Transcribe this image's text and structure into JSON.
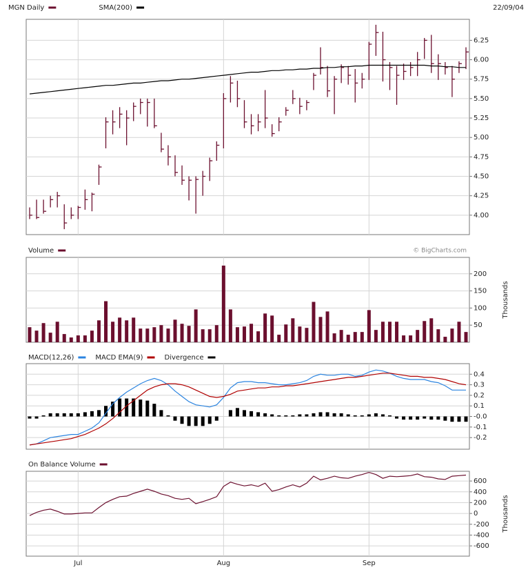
{
  "chart_data": [
    {
      "type": "ohlc",
      "date": "22/09/04",
      "ylim": [
        3.75,
        6.52
      ],
      "yticks": [
        {
          "value": 4,
          "label": "4.00"
        },
        {
          "value": 4.25,
          "label": "4.25"
        },
        {
          "value": 4.5,
          "label": "4.50"
        },
        {
          "value": 4.75,
          "label": "4.75"
        },
        {
          "value": 5,
          "label": "5.00"
        },
        {
          "value": 5.25,
          "label": "5.25"
        },
        {
          "value": 5.5,
          "label": "5.50"
        },
        {
          "value": 5.75,
          "label": "5.75"
        },
        {
          "value": 6,
          "label": "6.00"
        },
        {
          "value": 6.25,
          "label": "6.25"
        }
      ],
      "series": [
        {
          "name": "MGN Daily",
          "color": "#6b0f2e",
          "high": [
            4.1,
            4.2,
            4.2,
            4.25,
            4.3,
            4.14,
            4.1,
            4.12,
            4.33,
            4.29,
            4.65,
            5.26,
            5.35,
            5.39,
            5.35,
            5.45,
            5.5,
            5.5,
            5.5,
            5.06,
            4.9,
            4.77,
            4.64,
            4.5,
            4.5,
            4.57,
            4.74,
            4.95,
            5.57,
            5.79,
            5.73,
            5.48,
            5.3,
            5.3,
            5.61,
            5.17,
            5.26,
            5.39,
            5.61,
            5.51,
            5.48,
            5.83,
            6.16,
            5.92,
            5.79,
            5.94,
            5.92,
            5.88,
            5.83,
            6.23,
            6.45,
            6.36,
            5.97,
            5.92,
            5.95,
            5.97,
            6.1,
            6.28,
            6.32,
            6.07,
            5.97,
            5.92,
            5.98,
            6.16
          ],
          "low": [
            3.95,
            3.95,
            4.02,
            4.1,
            4.1,
            3.82,
            3.95,
            3.95,
            4.07,
            4.05,
            4.39,
            4.86,
            5.04,
            5.12,
            4.9,
            5.21,
            5.3,
            5.14,
            5.12,
            4.81,
            4.64,
            4.5,
            4.39,
            4.19,
            4.02,
            4.25,
            4.44,
            4.7,
            4.86,
            5.45,
            5.39,
            5.12,
            5.04,
            5.08,
            5.12,
            5.01,
            5.08,
            5.28,
            5.43,
            5.3,
            5.35,
            5.61,
            5.81,
            5.52,
            5.3,
            5.7,
            5.68,
            5.45,
            5.63,
            5.74,
            6.05,
            5.72,
            5.61,
            5.42,
            5.74,
            5.79,
            5.79,
            6.01,
            5.83,
            5.74,
            5.81,
            5.52,
            5.83,
            5.88
          ],
          "close": [
            4.0,
            3.97,
            4.05,
            4.2,
            4.25,
            3.9,
            4.0,
            4.1,
            4.2,
            4.27,
            4.62,
            5.2,
            5.2,
            5.3,
            5.25,
            5.4,
            5.45,
            5.45,
            5.15,
            4.85,
            4.75,
            4.55,
            4.45,
            4.45,
            4.46,
            4.5,
            4.7,
            4.9,
            5.5,
            5.7,
            5.5,
            5.2,
            5.15,
            5.2,
            5.25,
            5.05,
            5.2,
            5.35,
            5.5,
            5.4,
            5.45,
            5.8,
            5.9,
            5.6,
            5.75,
            5.9,
            5.8,
            5.7,
            5.75,
            6.2,
            6.35,
            6.0,
            5.9,
            5.8,
            5.85,
            5.9,
            6.0,
            6.25,
            5.95,
            5.95,
            5.9,
            5.75,
            5.95,
            6.1
          ]
        },
        {
          "name": "SMA(200)",
          "color": "#000000",
          "type": "line",
          "values": [
            5.56,
            5.57,
            5.58,
            5.59,
            5.6,
            5.61,
            5.62,
            5.63,
            5.64,
            5.65,
            5.66,
            5.67,
            5.67,
            5.68,
            5.69,
            5.7,
            5.7,
            5.71,
            5.72,
            5.73,
            5.73,
            5.74,
            5.75,
            5.75,
            5.76,
            5.77,
            5.78,
            5.79,
            5.8,
            5.81,
            5.82,
            5.83,
            5.84,
            5.84,
            5.85,
            5.86,
            5.86,
            5.87,
            5.87,
            5.88,
            5.88,
            5.89,
            5.89,
            5.9,
            5.9,
            5.91,
            5.91,
            5.92,
            5.92,
            5.93,
            5.93,
            5.93,
            5.93,
            5.93,
            5.93,
            5.93,
            5.93,
            5.93,
            5.92,
            5.92,
            5.91,
            5.91,
            5.9,
            5.9
          ]
        }
      ]
    },
    {
      "type": "bar",
      "ylabel": "Thousands",
      "credit": "© BigCharts.com",
      "ylim": [
        0,
        248
      ],
      "yticks": [
        50,
        100,
        150,
        200
      ],
      "series": [
        {
          "name": "Volume",
          "color": "#6b0f2e",
          "values": [
            44,
            34,
            56,
            28,
            60,
            24,
            14,
            20,
            20,
            34,
            64,
            120,
            60,
            72,
            64,
            72,
            40,
            40,
            44,
            50,
            40,
            66,
            54,
            48,
            96,
            38,
            38,
            50,
            224,
            96,
            44,
            46,
            54,
            32,
            84,
            78,
            22,
            52,
            70,
            46,
            42,
            118,
            74,
            90,
            26,
            36,
            22,
            30,
            30,
            94,
            36,
            60,
            60,
            60,
            20,
            20,
            36,
            62,
            70,
            38,
            16,
            40,
            60,
            30
          ]
        }
      ]
    },
    {
      "type": "line",
      "ylim": [
        -0.31,
        0.5
      ],
      "yticks": [
        0.4,
        0.3,
        0.2,
        0.1,
        {
          "value": 0,
          "label": "-0.0"
        },
        -0.1,
        -0.2
      ],
      "series": [
        {
          "name": "MACD(12,26)",
          "color": "#2b84e0",
          "values": [
            -0.27,
            -0.26,
            -0.23,
            -0.2,
            -0.19,
            -0.18,
            -0.17,
            -0.17,
            -0.14,
            -0.11,
            -0.06,
            0.03,
            0.12,
            0.18,
            0.23,
            0.27,
            0.31,
            0.34,
            0.36,
            0.34,
            0.3,
            0.24,
            0.19,
            0.14,
            0.11,
            0.1,
            0.09,
            0.11,
            0.18,
            0.27,
            0.32,
            0.33,
            0.33,
            0.32,
            0.32,
            0.31,
            0.3,
            0.3,
            0.31,
            0.32,
            0.34,
            0.38,
            0.4,
            0.39,
            0.39,
            0.4,
            0.4,
            0.38,
            0.39,
            0.42,
            0.44,
            0.43,
            0.41,
            0.38,
            0.36,
            0.35,
            0.35,
            0.35,
            0.33,
            0.32,
            0.29,
            0.25,
            0.25,
            0.25
          ]
        },
        {
          "name": "MACD EMA(9)",
          "color": "#b00000",
          "values": [
            -0.27,
            -0.26,
            -0.25,
            -0.24,
            -0.23,
            -0.22,
            -0.21,
            -0.19,
            -0.17,
            -0.14,
            -0.11,
            -0.07,
            -0.02,
            0.04,
            0.1,
            0.15,
            0.2,
            0.25,
            0.28,
            0.3,
            0.31,
            0.31,
            0.3,
            0.28,
            0.25,
            0.22,
            0.19,
            0.18,
            0.19,
            0.21,
            0.24,
            0.25,
            0.26,
            0.27,
            0.27,
            0.28,
            0.28,
            0.29,
            0.29,
            0.3,
            0.31,
            0.32,
            0.33,
            0.34,
            0.35,
            0.36,
            0.37,
            0.37,
            0.38,
            0.39,
            0.4,
            0.41,
            0.41,
            0.4,
            0.39,
            0.38,
            0.38,
            0.37,
            0.37,
            0.36,
            0.35,
            0.33,
            0.31,
            0.3
          ]
        },
        {
          "name": "Divergence",
          "color": "#000000",
          "type": "bar",
          "values": [
            -0.02,
            -0.02,
            0.01,
            0.03,
            0.03,
            0.03,
            0.03,
            0.03,
            0.04,
            0.05,
            0.06,
            0.1,
            0.14,
            0.17,
            0.17,
            0.17,
            0.16,
            0.15,
            0.12,
            0.06,
            0.01,
            -0.04,
            -0.07,
            -0.09,
            -0.09,
            -0.09,
            -0.07,
            -0.04,
            0.0,
            0.06,
            0.08,
            0.06,
            0.05,
            0.04,
            0.03,
            0.02,
            0.01,
            0.01,
            0.01,
            0.02,
            0.02,
            0.03,
            0.04,
            0.04,
            0.03,
            0.03,
            0.02,
            0.01,
            0.01,
            0.02,
            0.03,
            0.02,
            0.01,
            -0.02,
            -0.03,
            -0.03,
            -0.03,
            -0.02,
            -0.03,
            -0.03,
            -0.04,
            -0.05,
            -0.05,
            -0.05
          ]
        }
      ]
    },
    {
      "type": "line",
      "ylabel": "Thousands",
      "ylim": [
        -790,
        780
      ],
      "yticks": [
        600,
        400,
        200,
        0,
        -200,
        -400,
        -600
      ],
      "categories": [
        null,
        null,
        null,
        null,
        null,
        null,
        null,
        "Jul",
        null,
        null,
        null,
        null,
        null,
        null,
        null,
        null,
        null,
        null,
        null,
        null,
        null,
        null,
        null,
        null,
        null,
        null,
        null,
        null,
        "Aug",
        null,
        null,
        null,
        null,
        null,
        null,
        null,
        null,
        null,
        null,
        null,
        null,
        null,
        null,
        null,
        null,
        null,
        null,
        null,
        null,
        "Sep",
        null,
        null,
        null,
        null,
        null,
        null,
        null,
        null,
        null,
        null,
        null,
        null,
        null,
        null
      ],
      "series": [
        {
          "name": "On Balance Volume",
          "color": "#6b0f2e",
          "values": [
            -40,
            20,
            60,
            80,
            40,
            -10,
            -10,
            0,
            10,
            10,
            110,
            200,
            260,
            310,
            320,
            370,
            410,
            450,
            410,
            360,
            330,
            280,
            260,
            280,
            180,
            220,
            260,
            310,
            500,
            580,
            540,
            510,
            530,
            500,
            560,
            410,
            440,
            490,
            530,
            490,
            560,
            690,
            620,
            650,
            690,
            660,
            650,
            690,
            720,
            760,
            720,
            650,
            690,
            680,
            690,
            700,
            730,
            680,
            670,
            640,
            630,
            690,
            700,
            710
          ]
        }
      ]
    }
  ]
}
